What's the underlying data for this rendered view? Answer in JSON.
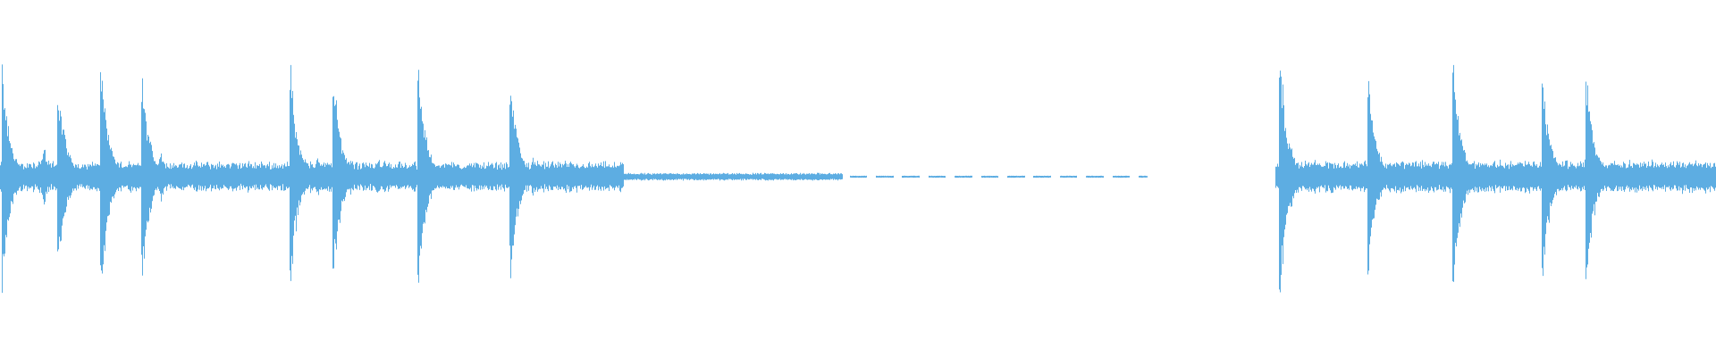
{
  "waveform": {
    "color": "#5dade2",
    "background": "#ffffff",
    "channels": "mono"
  }
}
